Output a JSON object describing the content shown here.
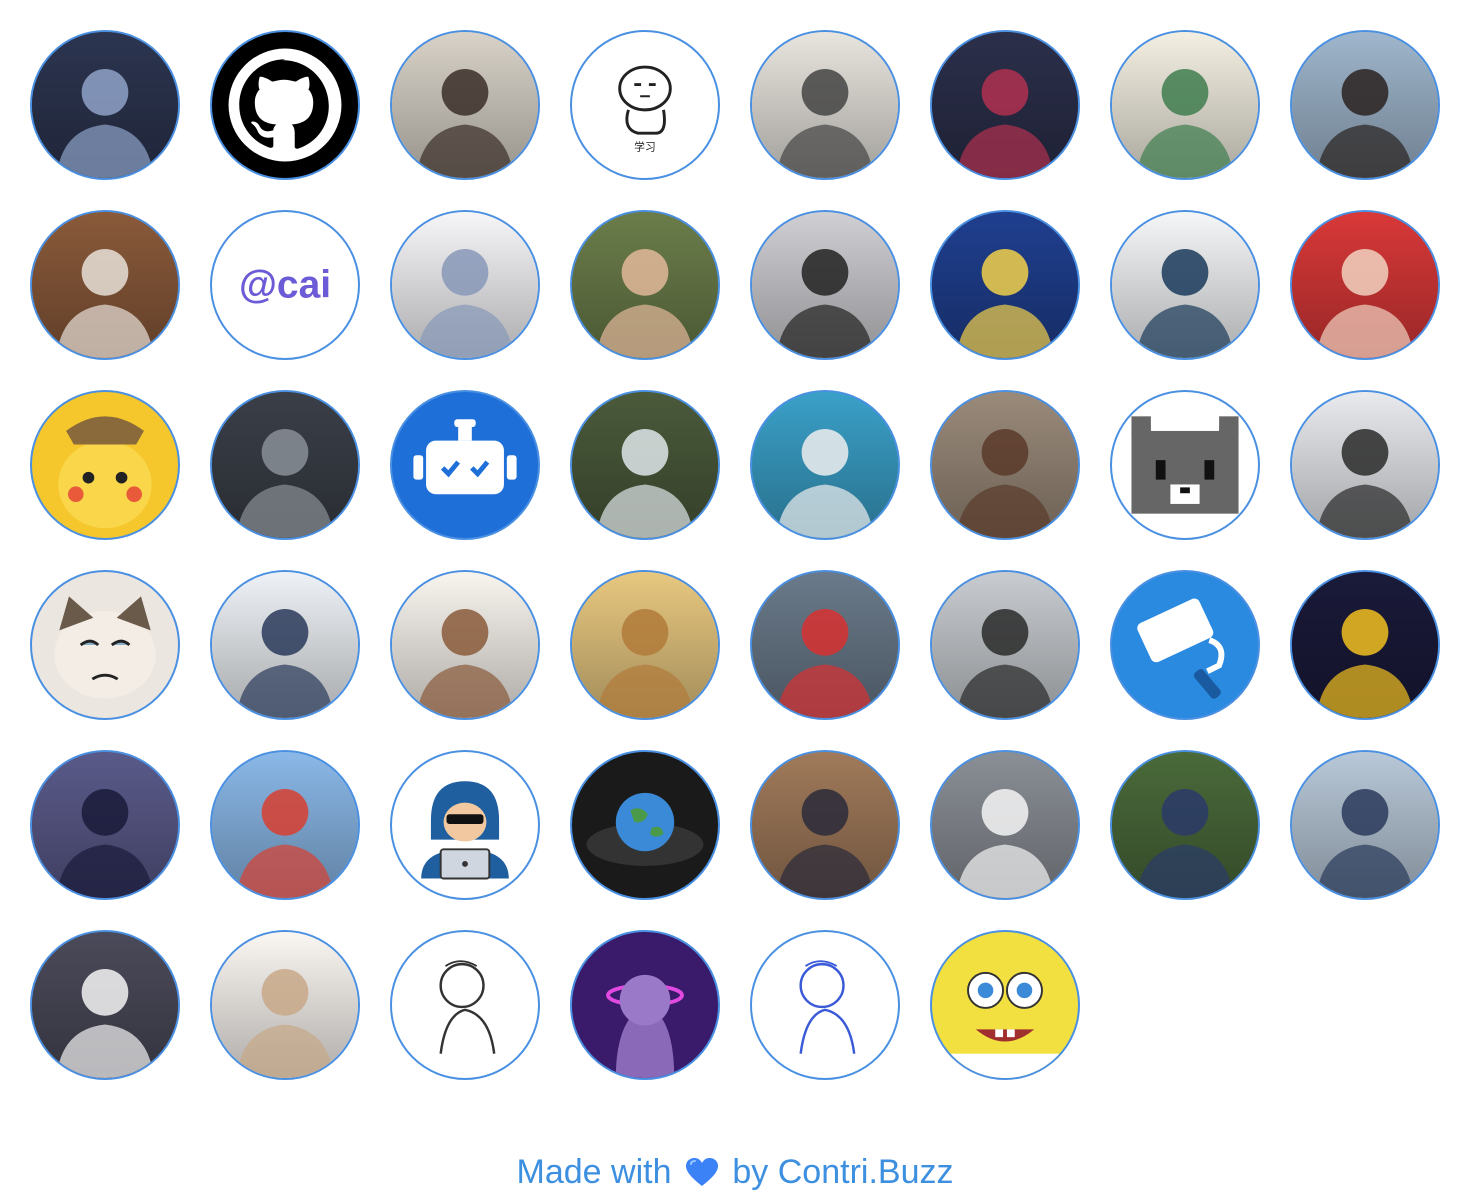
{
  "footer": {
    "prefix": "Made with",
    "suffix": "by Contri.Buzz",
    "heart_icon": "blue-heart-icon",
    "text_color": "#3d8fe0"
  },
  "avatar_border_color": "#4a90e2",
  "contributors": [
    {
      "icon": "space-avatar",
      "bg": "#2c3550",
      "fg": "#8fa2c8"
    },
    {
      "icon": "github-logo-avatar",
      "bg": "#000000",
      "fg": "#ffffff"
    },
    {
      "icon": "photo-portrait-avatar",
      "bg": "#d8d2c8",
      "fg": "#3a2e28"
    },
    {
      "icon": "doodle-study-avatar",
      "bg": "#ffffff",
      "fg": "#222222",
      "text": "学习"
    },
    {
      "icon": "couple-photo-avatar",
      "bg": "#e8e4de",
      "fg": "#444444"
    },
    {
      "icon": "anime-dark-avatar",
      "bg": "#2b2f4a",
      "fg": "#b03050"
    },
    {
      "icon": "cartoon-boy-cat-avatar",
      "bg": "#f3efe2",
      "fg": "#3f7d4e"
    },
    {
      "icon": "photo-portrait-avatar",
      "bg": "#9fb6cc",
      "fg": "#2a2220"
    },
    {
      "icon": "cat-photo-avatar",
      "bg": "#8a5a3a",
      "fg": "#e8e0d8"
    },
    {
      "icon": "cai-logo-avatar",
      "bg": "#ffffff",
      "fg": "#6b5bd6",
      "text": "@cai"
    },
    {
      "icon": "photo-portrait-avatar",
      "bg": "#f6f6f8",
      "fg": "#8898b8"
    },
    {
      "icon": "photo-portrait-avatar",
      "bg": "#6b7d4a",
      "fg": "#e2b89a"
    },
    {
      "icon": "person-with-cat-avatar",
      "bg": "#cfcfd4",
      "fg": "#222222"
    },
    {
      "icon": "anime-moon-avatar",
      "bg": "#1f3f8f",
      "fg": "#f2d04a"
    },
    {
      "icon": "fish-art-avatar",
      "bg": "#f4f6f8",
      "fg": "#1a3a5a"
    },
    {
      "icon": "photo-portrait-avatar",
      "bg": "#d93838",
      "fg": "#f1d2c0"
    },
    {
      "icon": "pikachu-avatar",
      "bg": "#f5c72c",
      "fg": "#8a6a3a"
    },
    {
      "icon": "photo-street-avatar",
      "bg": "#3a3f48",
      "fg": "#8a8f96"
    },
    {
      "icon": "robot-logo-avatar",
      "bg": "#1f6fd8",
      "fg": "#ffffff"
    },
    {
      "icon": "street-sign-photo-avatar",
      "bg": "#4a5a3a",
      "fg": "#dfe6ea"
    },
    {
      "icon": "husky-photo-avatar",
      "bg": "#3aa0c8",
      "fg": "#eeeeee"
    },
    {
      "icon": "photo-portrait-avatar",
      "bg": "#9a8a7a",
      "fg": "#5a3a2a"
    },
    {
      "icon": "pixel-cat-avatar",
      "bg": "#ffffff",
      "fg": "#444444"
    },
    {
      "icon": "photo-portrait-avatar",
      "bg": "#e8eaee",
      "fg": "#2a2a2a"
    },
    {
      "icon": "grumpy-cat-avatar",
      "bg": "#ece6e0",
      "fg": "#6a5a4a"
    },
    {
      "icon": "anime-glasses-avatar",
      "bg": "#eef2f6",
      "fg": "#2a3a5a"
    },
    {
      "icon": "cartoon-boy-avatar",
      "bg": "#f8f4ee",
      "fg": "#8a5a3a"
    },
    {
      "icon": "anime-lion-avatar",
      "bg": "#e8c880",
      "fg": "#b07a3a"
    },
    {
      "icon": "red-toy-avatar",
      "bg": "#6a7a8a",
      "fg": "#d83030"
    },
    {
      "icon": "photo-portrait-avatar",
      "bg": "#c8ccd0",
      "fg": "#2a2a2a"
    },
    {
      "icon": "paint-roller-logo-avatar",
      "bg": "#2a8ae0",
      "fg": "#ffffff"
    },
    {
      "icon": "basketball-player-avatar",
      "bg": "#1a1a3a",
      "fg": "#f2c020"
    },
    {
      "icon": "photo-speaker-avatar",
      "bg": "#5a5a8a",
      "fg": "#1a1a3a"
    },
    {
      "icon": "photo-outdoor-avatar",
      "bg": "#8ab8e8",
      "fg": "#d84030"
    },
    {
      "icon": "hacker-avatar",
      "bg": "#ffffff",
      "fg": "#1f5f9f"
    },
    {
      "icon": "earth-art-avatar",
      "bg": "#1a1a1a",
      "fg": "#3a8ad8"
    },
    {
      "icon": "photo-building-avatar",
      "bg": "#a07a5a",
      "fg": "#2a2a3a"
    },
    {
      "icon": "car-photo-avatar",
      "bg": "#8a8f96",
      "fg": "#f4f4f4"
    },
    {
      "icon": "photo-portrait-avatar",
      "bg": "#4a6a3a",
      "fg": "#2a3a6a"
    },
    {
      "icon": "photo-snow-avatar",
      "bg": "#b8c8d8",
      "fg": "#2a3a5a"
    },
    {
      "icon": "cat-meme-avatar",
      "bg": "#4a4a5a",
      "fg": "#f4f4f4"
    },
    {
      "icon": "anime-girl-avatar",
      "bg": "#faf6f2",
      "fg": "#c8a888"
    },
    {
      "icon": "line-drawing-avatar",
      "bg": "#ffffff",
      "fg": "#333333"
    },
    {
      "icon": "neon-statue-avatar",
      "bg": "#3a1a6a",
      "fg": "#e04ae0"
    },
    {
      "icon": "sketch-doodle-avatar",
      "bg": "#ffffff",
      "fg": "#3a5ad8"
    },
    {
      "icon": "spongebob-avatar",
      "bg": "#f2e040",
      "fg": "#a03030"
    }
  ]
}
